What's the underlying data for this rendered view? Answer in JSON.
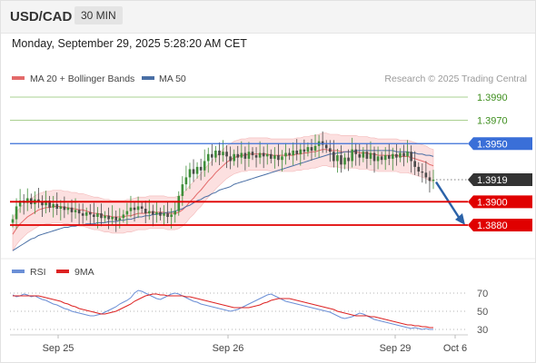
{
  "header": {
    "pair": "USD/CAD",
    "timeframe": "30 MIN"
  },
  "date_line": "Monday, September 29, 2025 5:28:20 AM CET",
  "legend": {
    "ma20": "MA 20 + Bollinger Bands",
    "ma50": "MA 50",
    "source": "Research © 2025 Trading Central"
  },
  "rsi_legend": {
    "rsi": "RSI",
    "ma": "9MA"
  },
  "colors": {
    "up": "#3f8f3a",
    "down": "#4a4a4a",
    "ma20": "#e36a6a",
    "ma50": "#4a6fa5",
    "band": "#fbd6d6",
    "resistance_green": "#8dc06b",
    "pivot_blue": "#3a6fd8",
    "support_red": "#e00000",
    "current": "#333333",
    "arrow": "#2b62a8",
    "rsi_line": "#6b8fd6",
    "rsi_ma": "#dd2222"
  },
  "chart_data": {
    "type": "candlestick",
    "instrument": "USD/CAD",
    "interval": "30 MIN",
    "price_levels": [
      {
        "value": 1.399,
        "label": "1.3990",
        "kind": "resistance"
      },
      {
        "value": 1.397,
        "label": "1.3970",
        "kind": "resistance"
      },
      {
        "value": 1.395,
        "label": "1.3950",
        "kind": "pivot"
      },
      {
        "value": 1.3919,
        "label": "1.3919",
        "kind": "current"
      },
      {
        "value": 1.39,
        "label": "1.3900",
        "kind": "support"
      },
      {
        "value": 1.388,
        "label": "1.3880",
        "kind": "support"
      }
    ],
    "x_labels": [
      "Sep 25",
      "Sep 26",
      "Sep 29",
      "Oct 6"
    ],
    "price_range": [
      1.3855,
      1.399
    ],
    "closes": [
      1.3885,
      1.3896,
      1.3901,
      1.3899,
      1.3903,
      1.3898,
      1.3902,
      1.39,
      1.3897,
      1.3901,
      1.3895,
      1.3898,
      1.3894,
      1.3896,
      1.3893,
      1.3895,
      1.3891,
      1.3893,
      1.389,
      1.3888,
      1.3891,
      1.3889,
      1.3887,
      1.389,
      1.3886,
      1.3888,
      1.3885,
      1.3887,
      1.3884,
      1.3886,
      1.3889,
      1.3892,
      1.3895,
      1.3893,
      1.3896,
      1.3894,
      1.389,
      1.3892,
      1.3889,
      1.3891,
      1.3888,
      1.389,
      1.3887,
      1.3889,
      1.3892,
      1.3905,
      1.3915,
      1.3921,
      1.3928,
      1.3924,
      1.393,
      1.3927,
      1.3935,
      1.3941,
      1.3938,
      1.3944,
      1.394,
      1.3943,
      1.3939,
      1.3935,
      1.3941,
      1.3938,
      1.3942,
      1.3937,
      1.3943,
      1.394,
      1.3938,
      1.3942,
      1.3939,
      1.3941,
      1.3937,
      1.394,
      1.3936,
      1.3939,
      1.3942,
      1.394,
      1.3944,
      1.3941,
      1.3945,
      1.3943,
      1.3947,
      1.3944,
      1.3948,
      1.3952,
      1.3949,
      1.3946,
      1.3943,
      1.3935,
      1.394,
      1.3932,
      1.3938,
      1.3935,
      1.3945,
      1.3941,
      1.3938,
      1.3943,
      1.3937,
      1.3942,
      1.3935,
      1.3939,
      1.3936,
      1.394,
      1.3937,
      1.3941,
      1.3938,
      1.3942,
      1.3939,
      1.3943,
      1.3935,
      1.393,
      1.3926,
      1.3925,
      1.3921,
      1.3918,
      1.3919
    ],
    "ma20": [
      1.3872,
      1.3877,
      1.3881,
      1.3884,
      1.3887,
      1.3889,
      1.3891,
      1.3893,
      1.3894,
      1.3895,
      1.3895,
      1.3896,
      1.3896,
      1.3896,
      1.3895,
      1.3895,
      1.3894,
      1.3894,
      1.3893,
      1.3893,
      1.3892,
      1.3891,
      1.389,
      1.389,
      1.3889,
      1.3888,
      1.3888,
      1.3887,
      1.3887,
      1.3887,
      1.3887,
      1.3888,
      1.3888,
      1.3889,
      1.389,
      1.389,
      1.389,
      1.3891,
      1.3891,
      1.3891,
      1.3891,
      1.3891,
      1.389,
      1.389,
      1.389,
      1.3891,
      1.3893,
      1.3896,
      1.39,
      1.3903,
      1.3907,
      1.391,
      1.3914,
      1.3918,
      1.3921,
      1.3925,
      1.3928,
      1.3931,
      1.3934,
      1.3936,
      1.3938,
      1.3939,
      1.394,
      1.394,
      1.3941,
      1.3941,
      1.3941,
      1.3941,
      1.3941,
      1.3941,
      1.394,
      1.394,
      1.394,
      1.394,
      1.394,
      1.394,
      1.394,
      1.3941,
      1.3941,
      1.3942,
      1.3942,
      1.3943,
      1.3943,
      1.3944,
      1.3945,
      1.3945,
      1.3944,
      1.3944,
      1.3944,
      1.3943,
      1.3943,
      1.3943,
      1.3943,
      1.3943,
      1.3942,
      1.3942,
      1.3942,
      1.3941,
      1.3941,
      1.394,
      1.394,
      1.394,
      1.394,
      1.394,
      1.394,
      1.3939,
      1.3939,
      1.3939,
      1.3938,
      1.3937,
      1.3936,
      1.3935,
      1.3934,
      1.3932,
      1.3931
    ],
    "ma50": [
      1.3858,
      1.386,
      1.3862,
      1.3864,
      1.3866,
      1.3868,
      1.3869,
      1.3871,
      1.3872,
      1.3873,
      1.3874,
      1.3875,
      1.3876,
      1.3877,
      1.3878,
      1.3878,
      1.3879,
      1.3879,
      1.388,
      1.388,
      1.3881,
      1.3881,
      1.3881,
      1.3882,
      1.3882,
      1.3882,
      1.3883,
      1.3883,
      1.3883,
      1.3884,
      1.3884,
      1.3885,
      1.3885,
      1.3886,
      1.3887,
      1.3887,
      1.3888,
      1.3888,
      1.3889,
      1.3889,
      1.389,
      1.389,
      1.3891,
      1.3891,
      1.3892,
      1.3893,
      1.3894,
      1.3896,
      1.3897,
      1.3899,
      1.3901,
      1.3902,
      1.3904,
      1.3905,
      1.3907,
      1.3908,
      1.391,
      1.3911,
      1.3912,
      1.3913,
      1.3915,
      1.3916,
      1.3917,
      1.3918,
      1.3919,
      1.392,
      1.3921,
      1.3922,
      1.3923,
      1.3924,
      1.3925,
      1.3926,
      1.3927,
      1.3928,
      1.3929,
      1.393,
      1.3931,
      1.3932,
      1.3933,
      1.3934,
      1.3935,
      1.3936,
      1.3937,
      1.3938,
      1.3939,
      1.394,
      1.3941,
      1.3941,
      1.3942,
      1.3942,
      1.3943,
      1.3943,
      1.3943,
      1.3944,
      1.3944,
      1.3944,
      1.3944,
      1.3944,
      1.3944,
      1.3944,
      1.3944,
      1.3944,
      1.3944,
      1.3944,
      1.3943,
      1.3943,
      1.3943,
      1.3943,
      1.3942,
      1.3942,
      1.3941,
      1.3941,
      1.394,
      1.394,
      1.3939
    ],
    "band_width": 0.0014,
    "projection": {
      "from": 1.3917,
      "to": 1.388
    },
    "rsi": {
      "levels": [
        70,
        50,
        30
      ],
      "labels": [
        "70",
        "50",
        "30"
      ],
      "range": [
        20,
        80
      ],
      "values": [
        68,
        66,
        67,
        69,
        68,
        66,
        67,
        65,
        63,
        62,
        60,
        58,
        57,
        55,
        53,
        52,
        50,
        49,
        48,
        47,
        46,
        45,
        45,
        46,
        47,
        49,
        51,
        53,
        55,
        58,
        60,
        62,
        65,
        70,
        73,
        72,
        70,
        68,
        66,
        64,
        63,
        65,
        67,
        69,
        70,
        69,
        67,
        65,
        63,
        61,
        60,
        58,
        57,
        56,
        55,
        54,
        53,
        52,
        51,
        50,
        51,
        52,
        54,
        56,
        58,
        60,
        62,
        64,
        66,
        68,
        69,
        67,
        65,
        63,
        61,
        60,
        59,
        58,
        57,
        56,
        55,
        54,
        53,
        52,
        51,
        50,
        49,
        47,
        45,
        43,
        42,
        43,
        44,
        46,
        48,
        47,
        45,
        43,
        41,
        40,
        39,
        38,
        37,
        36,
        35,
        34,
        33,
        32,
        31,
        32,
        31,
        30,
        31,
        30,
        30
      ],
      "ma9": [
        67,
        67,
        67,
        67,
        67,
        67,
        67,
        67,
        66,
        65,
        64,
        63,
        62,
        61,
        59,
        58,
        56,
        55,
        53,
        52,
        51,
        50,
        49,
        48,
        47,
        47,
        48,
        49,
        50,
        52,
        54,
        56,
        58,
        61,
        63,
        65,
        67,
        68,
        69,
        69,
        68,
        68,
        67,
        67,
        67,
        67,
        67,
        66,
        66,
        65,
        64,
        63,
        62,
        61,
        60,
        59,
        58,
        57,
        56,
        55,
        54,
        54,
        54,
        54,
        54,
        55,
        56,
        57,
        59,
        60,
        62,
        63,
        64,
        64,
        64,
        64,
        63,
        62,
        61,
        60,
        59,
        58,
        57,
        56,
        55,
        54,
        53,
        52,
        50,
        49,
        48,
        47,
        46,
        45,
        45,
        45,
        45,
        44,
        44,
        43,
        42,
        41,
        40,
        39,
        38,
        37,
        36,
        35,
        35,
        34,
        34,
        33,
        33,
        32,
        32
      ]
    }
  }
}
